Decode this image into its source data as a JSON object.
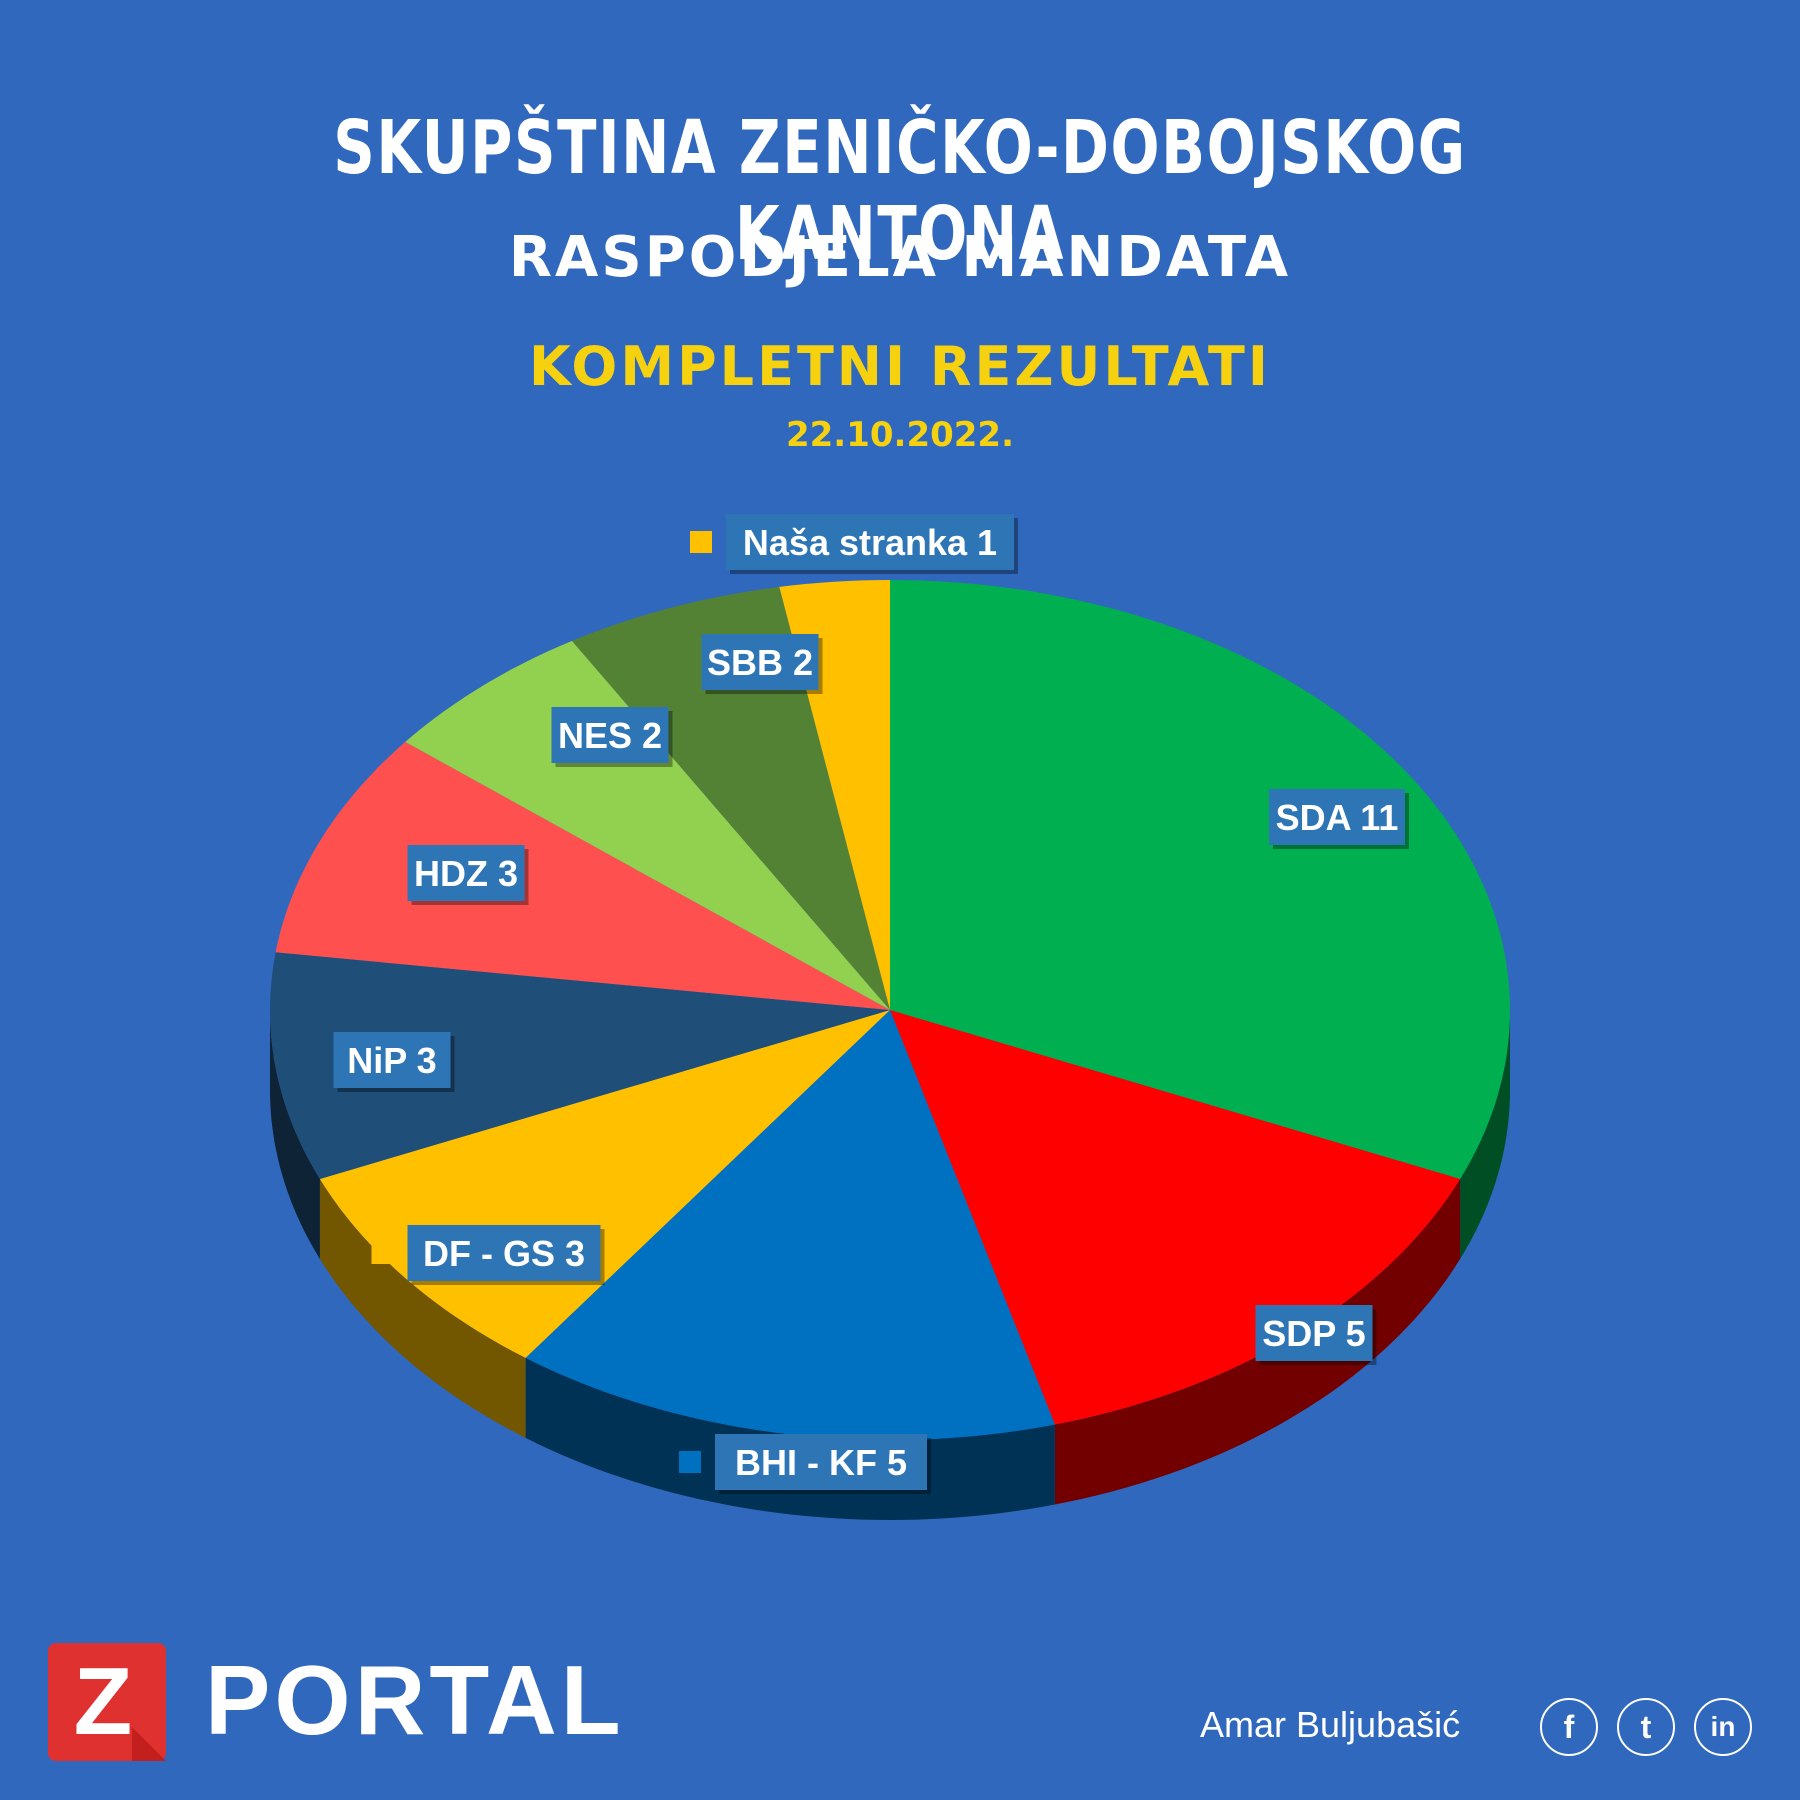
{
  "header": {
    "title": "SKUPŠTINA ZENIČKO-DOBOJSKOG KANTONA",
    "subtitle": "RASPODJELA MANDATA",
    "highlight": "KOMPLETNI REZULTATI",
    "date": "22.10.2022."
  },
  "chart_data": {
    "type": "pie",
    "slices": [
      {
        "label": "SDA 11",
        "name": "SDA",
        "value": 11,
        "color": "#00b050"
      },
      {
        "label": "SDP 5",
        "name": "SDP",
        "value": 5,
        "color": "#ff0000"
      },
      {
        "label": "BHI - KF 5",
        "name": "BHI - KF",
        "value": 5,
        "color": "#0070c0"
      },
      {
        "label": "DF - GS 3",
        "name": "DF - GS",
        "value": 3,
        "color": "#ffc000"
      },
      {
        "label": "NiP 3",
        "name": "NiP",
        "value": 3,
        "color": "#1f4e79"
      },
      {
        "label": "HDZ 3",
        "name": "HDZ",
        "value": 3,
        "color": "#ff5050"
      },
      {
        "label": "NES 2",
        "name": "NES",
        "value": 2,
        "color": "#92d050"
      },
      {
        "label": "SBB 2",
        "name": "SBB",
        "value": 2,
        "color": "#548235"
      },
      {
        "label": "Naša stranka 1",
        "name": "Naša stranka",
        "value": 1,
        "color": "#ffc000"
      }
    ],
    "label_box_color": "#2e75b6"
  },
  "footer": {
    "logo_letter": "Z",
    "logo_text": "PORTAL",
    "author": "Amar Buljubašić",
    "social": [
      "f",
      "t",
      "in"
    ]
  }
}
